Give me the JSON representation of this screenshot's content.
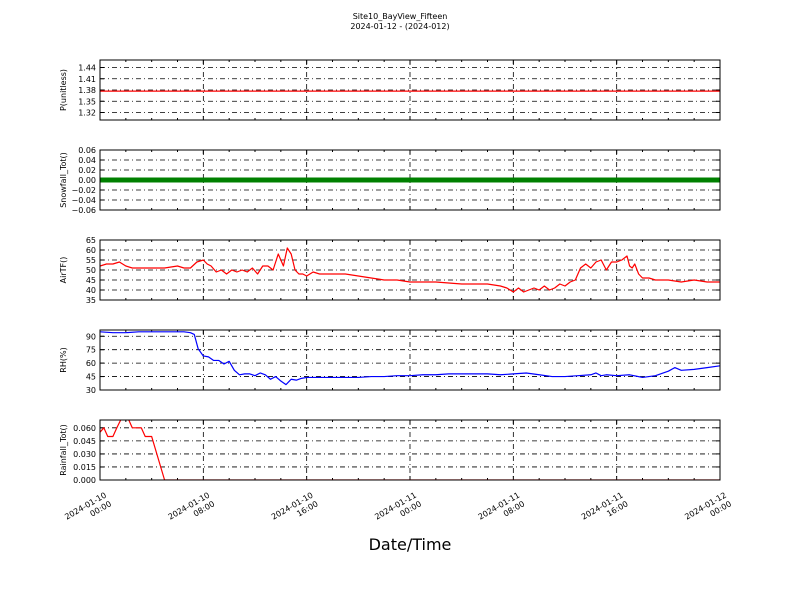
{
  "figure": {
    "title": "Site10_BayView_Fifteen",
    "subtitle": "2024-01-12 - (2024-012)",
    "xlabel": "Date/Time",
    "x_tick_labels": [
      [
        "2024-01-10",
        "00:00"
      ],
      [
        "2024-01-10",
        "08:00"
      ],
      [
        "2024-01-10",
        "16:00"
      ],
      [
        "2024-01-11",
        "00:00"
      ],
      [
        "2024-01-11",
        "08:00"
      ],
      [
        "2024-01-11",
        "16:00"
      ],
      [
        "2024-01-12",
        "00:00"
      ]
    ]
  },
  "chart_data": [
    {
      "type": "line",
      "ylabel": "P(unitless)",
      "ylim": [
        1.3,
        1.46
      ],
      "yticks": [
        1.32,
        1.35,
        1.38,
        1.41,
        1.44
      ],
      "ytick_labels": [
        "1.32",
        "1.35",
        "1.38",
        "1.41",
        "1.44"
      ],
      "xlim": [
        0,
        48
      ],
      "grid": true,
      "color": "#ff0000",
      "marker": false,
      "x": [
        0,
        48
      ],
      "y": [
        1.377,
        1.377
      ]
    },
    {
      "type": "line",
      "ylabel": "Snowfall_Tot()",
      "ylim": [
        -0.06,
        0.06
      ],
      "yticks": [
        -0.06,
        -0.04,
        -0.02,
        0.0,
        0.02,
        0.04,
        0.06
      ],
      "ytick_labels": [
        "−0.06",
        "−0.04",
        "−0.02",
        "0.00",
        "0.02",
        "0.04",
        "0.06"
      ],
      "xlim": [
        0,
        48
      ],
      "grid": true,
      "color": "#008000",
      "marker": true,
      "x": [
        0,
        48
      ],
      "y": [
        0.0,
        0.0
      ]
    },
    {
      "type": "line",
      "ylabel": "AirTF()",
      "ylim": [
        35,
        65
      ],
      "yticks": [
        35,
        40,
        45,
        50,
        55,
        60,
        65
      ],
      "ytick_labels": [
        "35",
        "40",
        "45",
        "50",
        "55",
        "60",
        "65"
      ],
      "xlim": [
        0,
        48
      ],
      "grid": true,
      "color": "#ff0000",
      "marker": false,
      "x": [
        0,
        0.5,
        1,
        1.5,
        2,
        2.5,
        3,
        4,
        5,
        6,
        6.5,
        7,
        7.5,
        8,
        8.3,
        8.6,
        9,
        9.4,
        9.8,
        10.2,
        10.6,
        11,
        11.4,
        11.8,
        12.2,
        12.6,
        13,
        13.4,
        13.8,
        14.2,
        14.5,
        14.8,
        15.1,
        15.4,
        15.7,
        16,
        16.5,
        17,
        17.5,
        18,
        19,
        20,
        21,
        22,
        23,
        24,
        26,
        28,
        30,
        31,
        31.5,
        32,
        32.4,
        32.8,
        33.2,
        33.6,
        34,
        34.4,
        34.8,
        35.2,
        35.6,
        36,
        36.4,
        36.8,
        37.2,
        37.6,
        38,
        38.4,
        38.8,
        39.2,
        39.6,
        40,
        40.4,
        40.8,
        41,
        41.2,
        41.4,
        41.7,
        42,
        42.5,
        43,
        44,
        45,
        46,
        47,
        48
      ],
      "y": [
        52,
        53,
        53,
        54,
        52,
        51,
        51,
        51,
        51,
        52,
        51,
        51,
        54,
        55,
        53,
        52,
        49,
        50,
        48,
        50,
        49,
        50,
        49,
        51,
        48,
        52,
        52,
        50,
        58,
        52,
        61,
        58,
        50,
        48,
        48,
        47,
        49,
        48,
        48,
        48,
        48,
        47,
        46,
        45,
        45,
        44,
        44,
        43,
        43,
        42,
        41,
        39,
        41,
        39,
        40,
        41,
        40,
        42,
        40,
        41,
        43,
        42,
        44,
        45,
        51,
        53,
        51,
        54,
        55,
        50,
        54,
        54,
        55,
        57,
        52,
        51,
        53,
        48,
        46,
        46,
        45,
        45,
        44,
        45,
        44,
        44
      ],
      "y_note": ""
    },
    {
      "type": "line",
      "ylabel": "RH(%)",
      "ylim": [
        30,
        97
      ],
      "yticks": [
        30,
        45,
        60,
        75,
        90
      ],
      "ytick_labels": [
        "30",
        "45",
        "60",
        "75",
        "90"
      ],
      "xlim": [
        0,
        48
      ],
      "grid": true,
      "color": "#0000ff",
      "marker": false,
      "x": [
        0,
        1,
        2,
        3,
        4,
        5,
        6,
        6.5,
        7,
        7.3,
        7.6,
        8,
        8.4,
        8.8,
        9.2,
        9.6,
        10,
        10.4,
        10.8,
        11.2,
        11.6,
        12,
        12.4,
        12.8,
        13.2,
        13.6,
        14,
        14.4,
        14.8,
        15.2,
        15.6,
        16,
        17,
        18,
        19,
        20,
        21,
        22,
        23,
        24,
        25,
        26,
        27,
        28,
        29,
        30,
        31,
        32,
        33,
        34,
        35,
        36,
        37,
        38,
        38.4,
        38.8,
        39.2,
        40,
        41,
        42,
        43,
        44,
        44.5,
        45,
        46,
        47,
        48
      ],
      "y": [
        95,
        94,
        94,
        95,
        95,
        95,
        95,
        95,
        94,
        92,
        76,
        68,
        67,
        63,
        63,
        59,
        62,
        52,
        47,
        48,
        48,
        46,
        49,
        47,
        42,
        45,
        40,
        36,
        42,
        41,
        43,
        44,
        44,
        44,
        44,
        44,
        45,
        45,
        46,
        46,
        47,
        47,
        48,
        48,
        48,
        48,
        47,
        48,
        49,
        47,
        45,
        45,
        46,
        47,
        49,
        46,
        47,
        46,
        47,
        44,
        46,
        51,
        55,
        52,
        53,
        55,
        57
      ]
    },
    {
      "type": "line",
      "ylabel": "Rainfall_Tot()",
      "ylim": [
        0,
        0.069
      ],
      "yticks": [
        0.0,
        0.015,
        0.03,
        0.045,
        0.06
      ],
      "ytick_labels": [
        "0.000",
        "0.015",
        "0.030",
        "0.045",
        "0.060"
      ],
      "xlim": [
        0,
        48
      ],
      "grid": true,
      "color": "#ff0000",
      "marker": false,
      "x": [
        0,
        0.3,
        0.6,
        1,
        1.3,
        1.6,
        1.9,
        2.2,
        2.5,
        2.8,
        3,
        3.2,
        3.5,
        4,
        5,
        10,
        20,
        30,
        40,
        48
      ],
      "y": [
        0.055,
        0.06,
        0.05,
        0.05,
        0.06,
        0.069,
        0.07,
        0.07,
        0.06,
        0.06,
        0.06,
        0.06,
        0.05,
        0.05,
        0.0,
        0.0,
        0.0,
        0.0,
        0.0,
        0.0
      ]
    }
  ]
}
